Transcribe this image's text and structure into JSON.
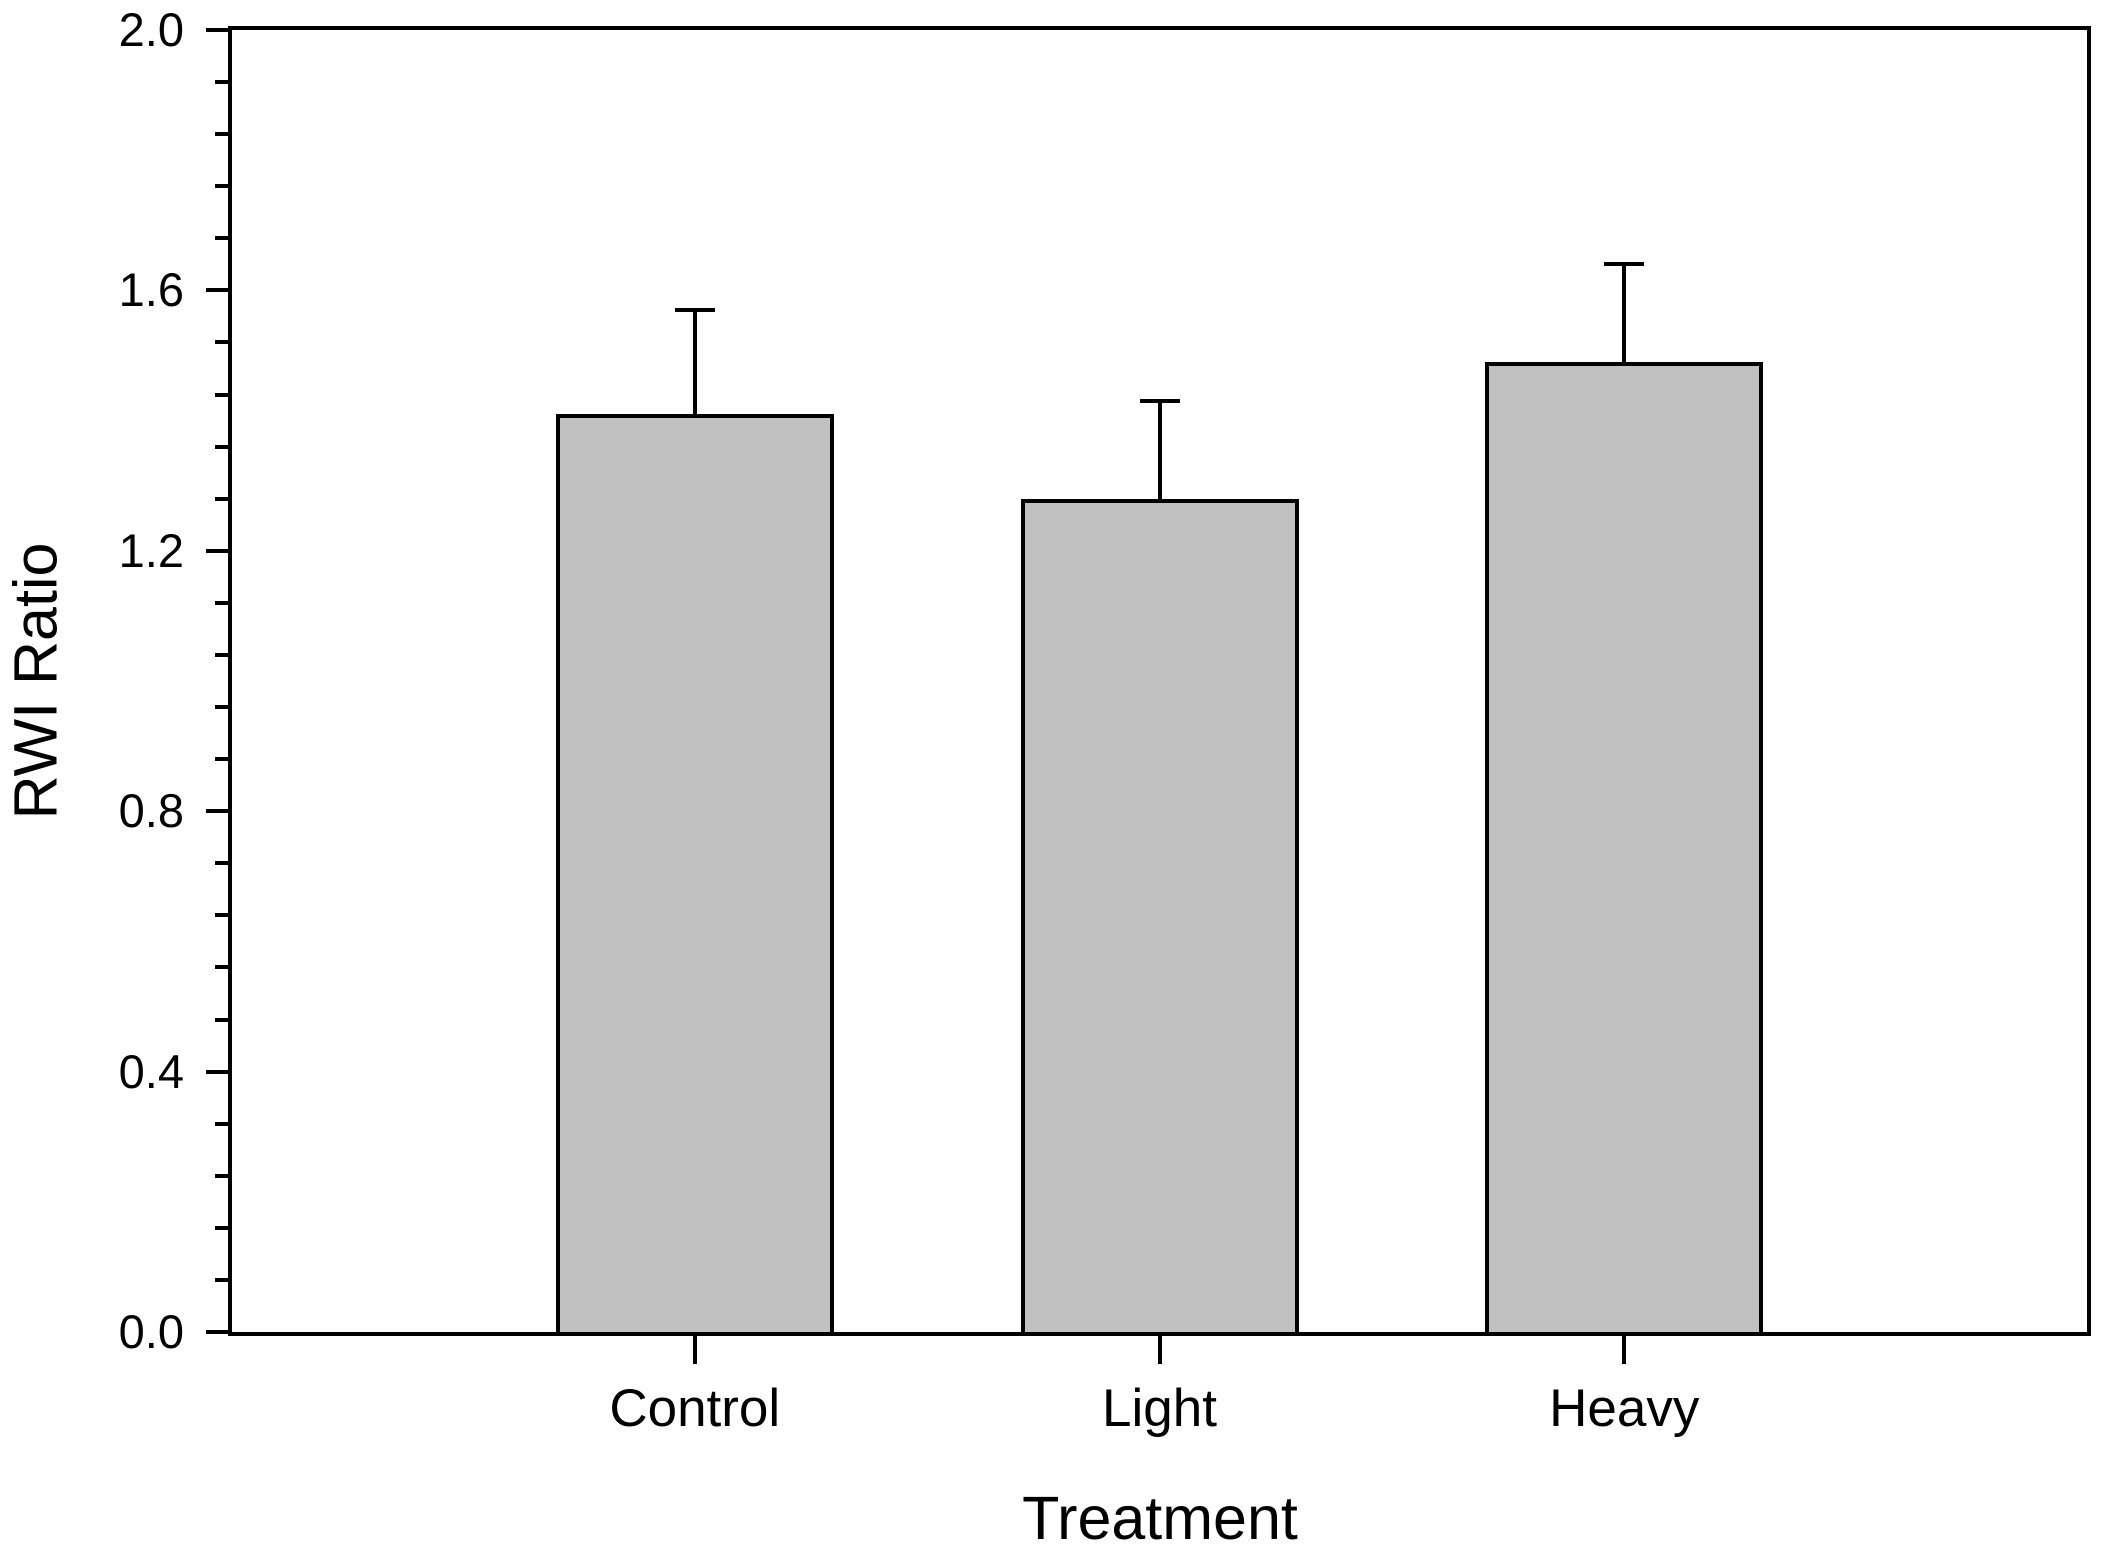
{
  "figure": {
    "background_color": "#ffffff",
    "frame_color": "#000000"
  },
  "chart_data": {
    "type": "bar",
    "title": "",
    "xlabel": "Treatment",
    "ylabel": "RWI Ratio",
    "categories": [
      "Control",
      "Light",
      "Heavy"
    ],
    "values": [
      1.41,
      1.28,
      1.49
    ],
    "errors_upper": [
      0.16,
      0.15,
      0.15
    ],
    "error_bar_direction": "up",
    "ylim": [
      0.0,
      2.0
    ],
    "y_major_ticks": [
      0.0,
      0.4,
      0.8,
      1.2,
      1.6,
      2.0
    ],
    "y_tick_labels": [
      "0.0",
      "0.4",
      "0.8",
      "1.2",
      "1.6",
      "2.0"
    ],
    "y_minor_tick_interval": 0.08,
    "grid": false,
    "legend_position": "none",
    "bar_fill_color": "#c1c1c1",
    "bar_border_color": "#000000"
  }
}
